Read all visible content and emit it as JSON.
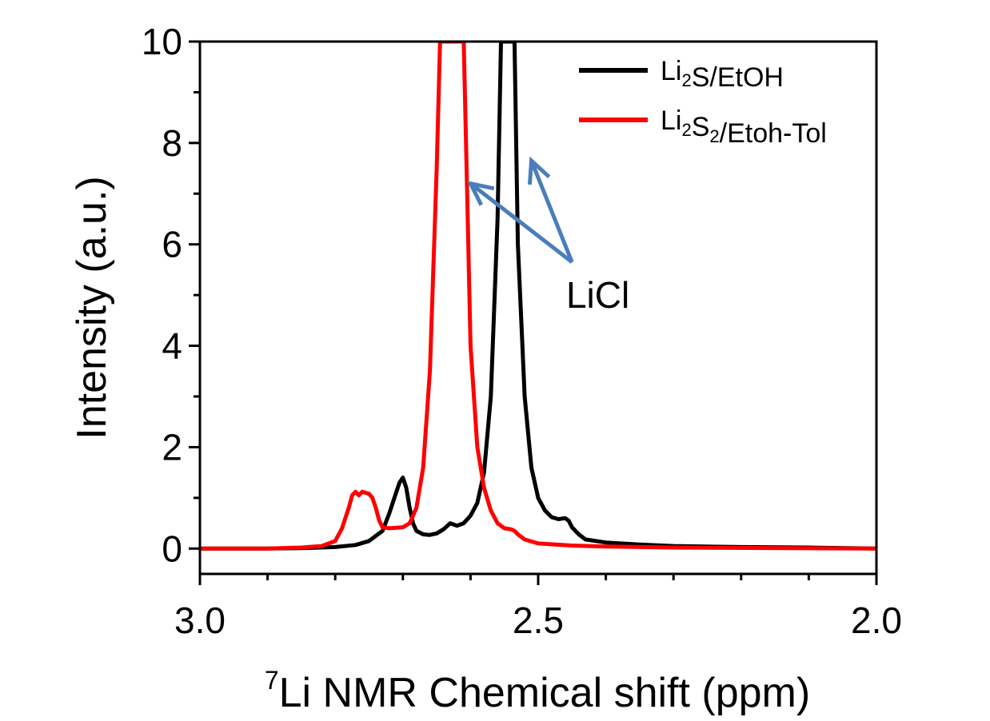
{
  "chart_data": {
    "type": "line",
    "xlabel": {
      "sup": "7",
      "text": "Li NMR Chemical shift (ppm)"
    },
    "ylabel": "Intensity (a.u.)",
    "xlim": [
      3.0,
      2.0
    ],
    "ylim": [
      -0.5,
      10
    ],
    "x_ticks": [
      {
        "value": 3.0,
        "label": "3.0"
      },
      {
        "value": 2.5,
        "label": "2.5"
      },
      {
        "value": 2.0,
        "label": "2.0"
      }
    ],
    "y_ticks": [
      {
        "value": 0,
        "label": "0"
      },
      {
        "value": 2,
        "label": "2"
      },
      {
        "value": 4,
        "label": "4"
      },
      {
        "value": 6,
        "label": "6"
      },
      {
        "value": 8,
        "label": "8"
      },
      {
        "value": 10,
        "label": "10"
      }
    ],
    "legend_position": "top-right",
    "series": [
      {
        "id": "li2s-etoh",
        "color": "#000000",
        "legend": [
          {
            "t": "Li"
          },
          {
            "t": "2",
            "sub": true
          },
          {
            "t": "S/EtOH"
          }
        ],
        "points": [
          [
            3.0,
            0.0
          ],
          [
            2.9,
            0.0
          ],
          [
            2.85,
            0.01
          ],
          [
            2.8,
            0.03
          ],
          [
            2.77,
            0.07
          ],
          [
            2.75,
            0.15
          ],
          [
            2.73,
            0.35
          ],
          [
            2.72,
            0.7
          ],
          [
            2.71,
            1.1
          ],
          [
            2.705,
            1.3
          ],
          [
            2.7,
            1.4
          ],
          [
            2.695,
            1.2
          ],
          [
            2.69,
            0.8
          ],
          [
            2.685,
            0.5
          ],
          [
            2.68,
            0.35
          ],
          [
            2.67,
            0.28
          ],
          [
            2.66,
            0.27
          ],
          [
            2.65,
            0.3
          ],
          [
            2.64,
            0.38
          ],
          [
            2.63,
            0.5
          ],
          [
            2.62,
            0.45
          ],
          [
            2.61,
            0.5
          ],
          [
            2.6,
            0.65
          ],
          [
            2.59,
            0.9
          ],
          [
            2.58,
            1.5
          ],
          [
            2.57,
            3.0
          ],
          [
            2.56,
            6.5
          ],
          [
            2.555,
            10.0
          ],
          [
            2.545,
            10.0
          ],
          [
            2.535,
            10.0
          ],
          [
            2.53,
            6.0
          ],
          [
            2.52,
            3.0
          ],
          [
            2.51,
            1.6
          ],
          [
            2.5,
            1.0
          ],
          [
            2.49,
            0.75
          ],
          [
            2.48,
            0.62
          ],
          [
            2.47,
            0.58
          ],
          [
            2.46,
            0.6
          ],
          [
            2.455,
            0.55
          ],
          [
            2.45,
            0.42
          ],
          [
            2.44,
            0.28
          ],
          [
            2.43,
            0.18
          ],
          [
            2.4,
            0.12
          ],
          [
            2.35,
            0.08
          ],
          [
            2.3,
            0.05
          ],
          [
            2.2,
            0.03
          ],
          [
            2.1,
            0.02
          ],
          [
            2.0,
            0.0
          ]
        ]
      },
      {
        "id": "li2s2-etoh-tol",
        "color": "#ff0000",
        "legend": [
          {
            "t": "Li"
          },
          {
            "t": "2",
            "sub": true
          },
          {
            "t": "S"
          },
          {
            "t": "2",
            "sub": true
          },
          {
            "t": "/Etoh-Tol"
          }
        ],
        "points": [
          [
            3.0,
            0.0
          ],
          [
            2.9,
            0.0
          ],
          [
            2.85,
            0.02
          ],
          [
            2.82,
            0.05
          ],
          [
            2.8,
            0.15
          ],
          [
            2.79,
            0.4
          ],
          [
            2.78,
            0.8
          ],
          [
            2.775,
            1.05
          ],
          [
            2.77,
            1.12
          ],
          [
            2.765,
            1.05
          ],
          [
            2.76,
            1.12
          ],
          [
            2.755,
            1.1
          ],
          [
            2.75,
            1.08
          ],
          [
            2.745,
            1.0
          ],
          [
            2.74,
            0.8
          ],
          [
            2.735,
            0.55
          ],
          [
            2.73,
            0.42
          ],
          [
            2.72,
            0.4
          ],
          [
            2.7,
            0.42
          ],
          [
            2.69,
            0.5
          ],
          [
            2.68,
            0.8
          ],
          [
            2.67,
            1.6
          ],
          [
            2.66,
            3.5
          ],
          [
            2.65,
            7.5
          ],
          [
            2.645,
            10.0
          ],
          [
            2.62,
            10.0
          ],
          [
            2.61,
            10.0
          ],
          [
            2.605,
            7.0
          ],
          [
            2.6,
            4.0
          ],
          [
            2.59,
            2.0
          ],
          [
            2.58,
            1.2
          ],
          [
            2.57,
            0.75
          ],
          [
            2.56,
            0.5
          ],
          [
            2.55,
            0.4
          ],
          [
            2.54,
            0.38
          ],
          [
            2.535,
            0.35
          ],
          [
            2.53,
            0.28
          ],
          [
            2.52,
            0.18
          ],
          [
            2.5,
            0.1
          ],
          [
            2.45,
            0.06
          ],
          [
            2.4,
            0.04
          ],
          [
            2.3,
            0.02
          ],
          [
            2.0,
            0.0
          ]
        ]
      }
    ],
    "annotation": {
      "text": "LiCl",
      "color": "#4a7ebb",
      "arrows": [
        {
          "from": [
            2.45,
            5.65
          ],
          "to": [
            2.6,
            7.2
          ]
        },
        {
          "from": [
            2.45,
            5.65
          ],
          "to": [
            2.51,
            7.65
          ]
        }
      ],
      "label_at": [
        2.4,
        5.0
      ]
    }
  }
}
